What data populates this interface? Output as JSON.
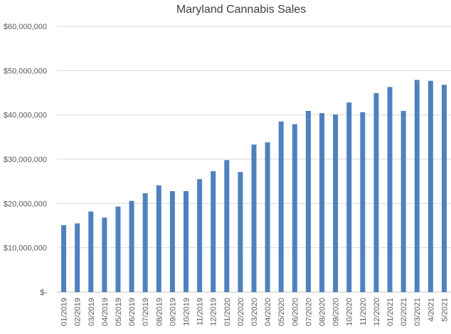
{
  "chart_data": {
    "type": "bar",
    "title": "Maryland Cannabis Sales",
    "xlabel": "",
    "ylabel": "",
    "ylim": [
      0,
      60000000
    ],
    "yticks": [
      0,
      10000000,
      20000000,
      30000000,
      40000000,
      50000000,
      60000000
    ],
    "ytick_labels": [
      "$-",
      "$10,000,000",
      "$20,000,000",
      "$30,000,000",
      "$40,000,000",
      "$50,000,000",
      "$60,000,000"
    ],
    "grid": true,
    "legend": "none",
    "bar_color": "#4f81bd",
    "categories": [
      "01/2019",
      "02/2019",
      "03/2019",
      "04/2019",
      "05/2019",
      "06/2019",
      "07/2019",
      "08/2019",
      "09/2019",
      "10/2019",
      "11/2019",
      "12/2019",
      "01/2020",
      "02/2020",
      "03/2020",
      "04/2020",
      "05/2020",
      "06/2020",
      "07/2020",
      "08/2020",
      "09/2020",
      "10/2020",
      "11/2020",
      "12/2020",
      "01/2021",
      "02/2021",
      "03/2021",
      "4/2021",
      "5/2021"
    ],
    "values": [
      15100000,
      15500000,
      18200000,
      16800000,
      19300000,
      20600000,
      22300000,
      24100000,
      22800000,
      22800000,
      25500000,
      27300000,
      29800000,
      27100000,
      33300000,
      33800000,
      38500000,
      37900000,
      40900000,
      40400000,
      40100000,
      42800000,
      40600000,
      44900000,
      46300000,
      40900000,
      47900000,
      47700000,
      46800000
    ]
  }
}
